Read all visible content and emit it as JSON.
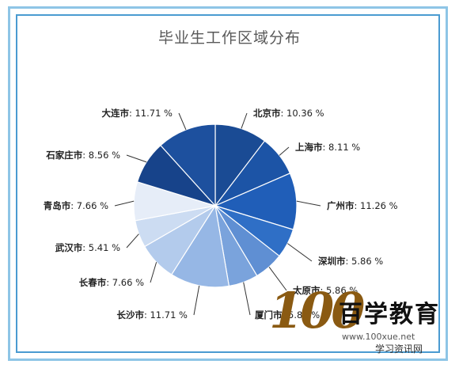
{
  "chart_data": {
    "type": "pie",
    "title": "毕业生工作区域分布",
    "series": [
      {
        "label": "北京市",
        "value_text": "10.36 %",
        "value": 10.36,
        "color": "#1a4b94"
      },
      {
        "label": "上海市",
        "value_text": "8.11 %",
        "value": 8.11,
        "color": "#1c54a6"
      },
      {
        "label": "广州市",
        "value_text": "11.26 %",
        "value": 11.26,
        "color": "#205eb8"
      },
      {
        "label": "深圳市",
        "value_text": "5.86 %",
        "value": 5.86,
        "color": "#2f6fc6"
      },
      {
        "label": "太原市",
        "value_text": "5.86 %",
        "value": 5.86,
        "color": "#5f8fd3"
      },
      {
        "label": "厦门市",
        "value_text": "5.86 %",
        "value": 5.86,
        "color": "#7aa3dc"
      },
      {
        "label": "长沙市",
        "value_text": "11.71 %",
        "value": 11.71,
        "color": "#96b7e5"
      },
      {
        "label": "长春市",
        "value_text": "7.66 %",
        "value": 7.66,
        "color": "#b3cbec"
      },
      {
        "label": "武汉市",
        "value_text": "5.41 %",
        "value": 5.41,
        "color": "#ccdcf2"
      },
      {
        "label": "青岛市",
        "value_text": "7.66 %",
        "value": 7.66,
        "color": "#e6edf8"
      },
      {
        "label": "石家庄市",
        "value_text": "8.56 %",
        "value": 8.56,
        "color": "#17438a"
      },
      {
        "label": "大连市",
        "value_text": "11.71 %",
        "value": 11.71,
        "color": "#1d509e"
      }
    ]
  },
  "watermark": {
    "logo_number": "100",
    "logo_text": "百学教育",
    "url": "www.100xue.net",
    "wechat": "学习资讯网"
  }
}
